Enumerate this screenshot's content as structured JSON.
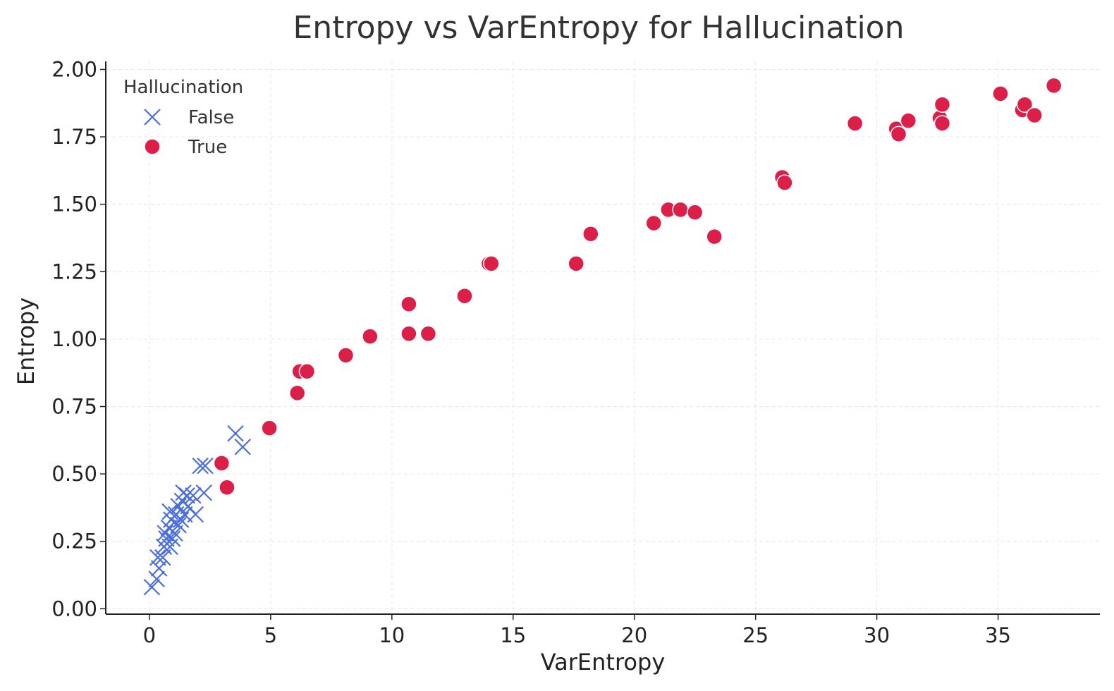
{
  "chart_data": {
    "type": "scatter",
    "title": "Entropy vs VarEntropy for Hallucination",
    "xlabel": "VarEntropy",
    "ylabel": "Entropy",
    "xlim": [
      -1.8,
      39.2
    ],
    "ylim": [
      -0.02,
      2.03
    ],
    "xticks": [
      0,
      5,
      10,
      15,
      20,
      25,
      30,
      35
    ],
    "yticks": [
      0.0,
      0.25,
      0.5,
      0.75,
      1.0,
      1.25,
      1.5,
      1.75,
      2.0
    ],
    "ytick_labels": [
      "0.00",
      "0.25",
      "0.50",
      "0.75",
      "1.00",
      "1.25",
      "1.50",
      "1.75",
      "2.00"
    ],
    "grid": true,
    "legend": {
      "title": "Hallucination",
      "placement": "top-left"
    },
    "series": [
      {
        "name": "False",
        "marker": "x",
        "color": "#4a6fdc",
        "points": [
          [
            0.1,
            0.08
          ],
          [
            0.3,
            0.11
          ],
          [
            0.4,
            0.15
          ],
          [
            0.35,
            0.19
          ],
          [
            0.55,
            0.19
          ],
          [
            0.6,
            0.23
          ],
          [
            0.85,
            0.23
          ],
          [
            0.7,
            0.26
          ],
          [
            0.95,
            0.26
          ],
          [
            0.65,
            0.28
          ],
          [
            1.05,
            0.28
          ],
          [
            0.8,
            0.3
          ],
          [
            1.2,
            0.31
          ],
          [
            0.9,
            0.33
          ],
          [
            1.3,
            0.33
          ],
          [
            1.1,
            0.35
          ],
          [
            1.45,
            0.35
          ],
          [
            1.9,
            0.35
          ],
          [
            0.85,
            0.36
          ],
          [
            1.2,
            0.38
          ],
          [
            1.6,
            0.38
          ],
          [
            1.35,
            0.4
          ],
          [
            1.55,
            0.42
          ],
          [
            1.8,
            0.42
          ],
          [
            1.4,
            0.43
          ],
          [
            2.25,
            0.43
          ],
          [
            2.1,
            0.53
          ],
          [
            2.3,
            0.53
          ],
          [
            3.85,
            0.6
          ],
          [
            3.55,
            0.65
          ]
        ]
      },
      {
        "name": "True",
        "marker": "circle",
        "color": "#dc1f48",
        "points": [
          [
            2.98,
            0.54
          ],
          [
            3.2,
            0.45
          ],
          [
            4.95,
            0.67
          ],
          [
            6.1,
            0.8
          ],
          [
            6.2,
            0.88
          ],
          [
            6.5,
            0.88
          ],
          [
            8.1,
            0.94
          ],
          [
            9.1,
            1.01
          ],
          [
            10.7,
            1.02
          ],
          [
            11.5,
            1.02
          ],
          [
            10.7,
            1.13
          ],
          [
            13.0,
            1.16
          ],
          [
            14.0,
            1.28
          ],
          [
            14.1,
            1.28
          ],
          [
            17.6,
            1.28
          ],
          [
            18.2,
            1.39
          ],
          [
            20.8,
            1.43
          ],
          [
            21.4,
            1.48
          ],
          [
            21.9,
            1.48
          ],
          [
            22.5,
            1.47
          ],
          [
            23.3,
            1.38
          ],
          [
            26.1,
            1.6
          ],
          [
            26.2,
            1.58
          ],
          [
            29.1,
            1.8
          ],
          [
            30.8,
            1.78
          ],
          [
            30.9,
            1.76
          ],
          [
            31.3,
            1.81
          ],
          [
            32.6,
            1.82
          ],
          [
            32.7,
            1.8
          ],
          [
            32.7,
            1.87
          ],
          [
            35.1,
            1.91
          ],
          [
            36.0,
            1.85
          ],
          [
            36.1,
            1.87
          ],
          [
            36.5,
            1.83
          ],
          [
            37.3,
            1.94
          ]
        ]
      }
    ]
  }
}
